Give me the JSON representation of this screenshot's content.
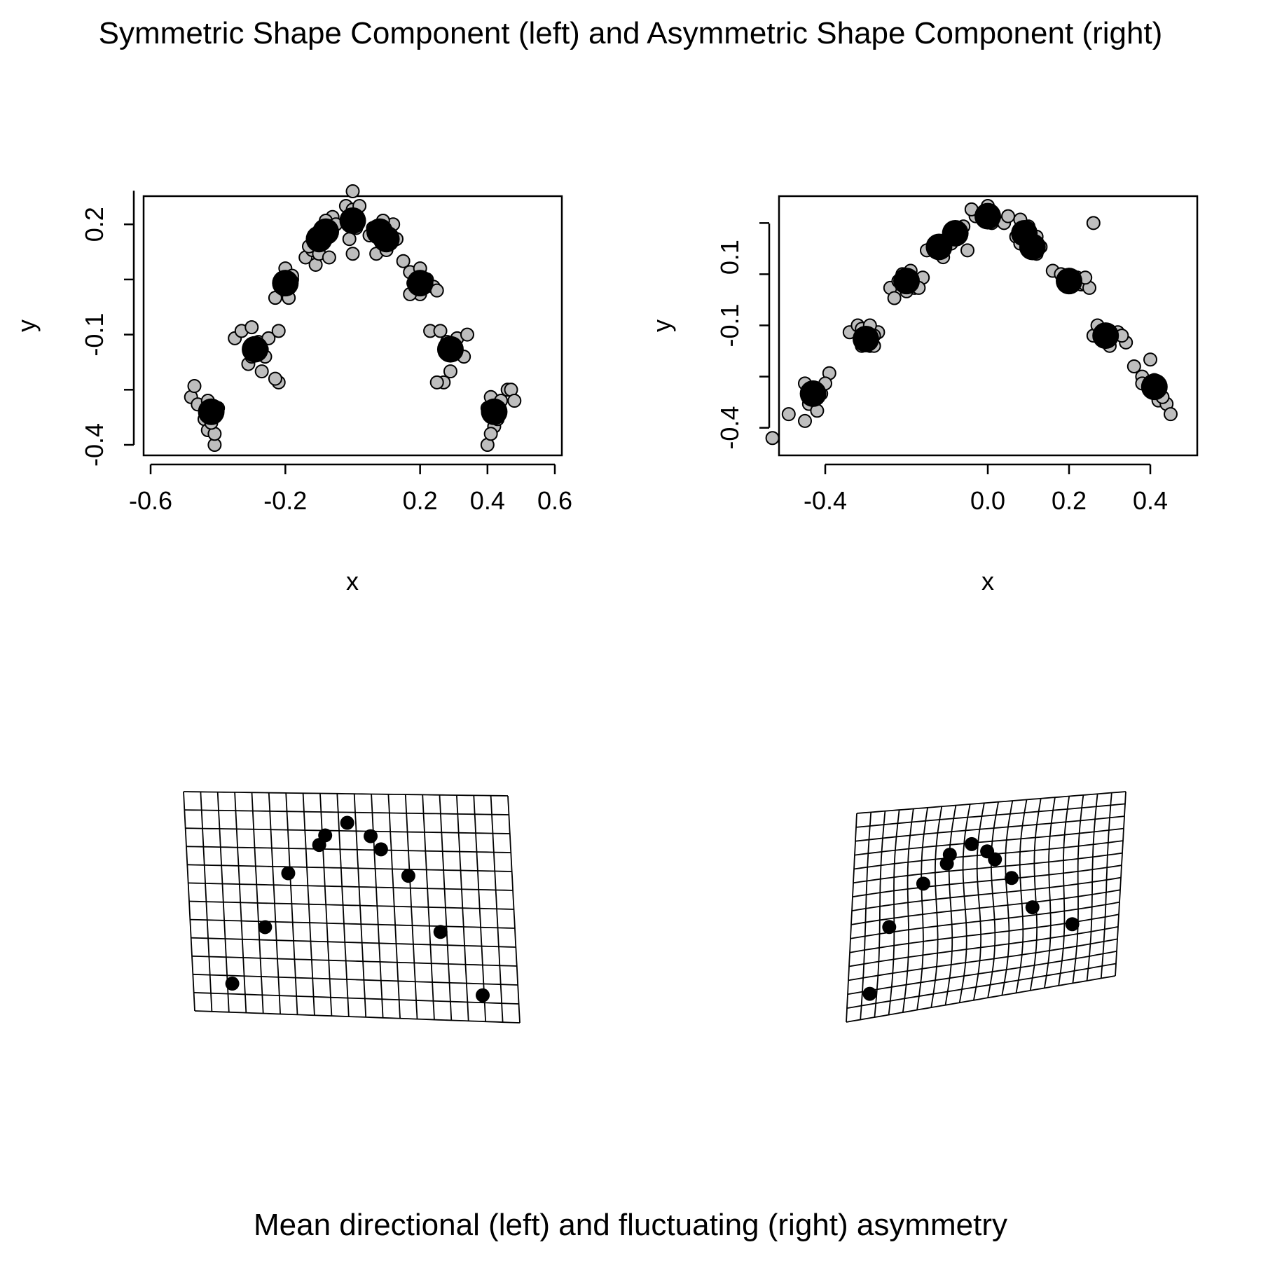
{
  "titles": {
    "top": "Symmetric Shape Component (left) and Asymmetric Shape Component (right)",
    "bottom": "Mean directional (left) and fluctuating (right) asymmetry"
  },
  "colors": {
    "point_fill": "#bebebe",
    "point_stroke": "#000000",
    "mean_fill": "#000000",
    "grid": "#000000",
    "background": "#ffffff"
  },
  "chart_data": [
    {
      "type": "scatter",
      "title": "",
      "xlabel": "x",
      "ylabel": "y",
      "xlim": [
        -0.6,
        0.6
      ],
      "ylim": [
        -0.4,
        0.25
      ],
      "xticks": [
        -0.6,
        -0.2,
        0.2,
        0.4,
        0.6
      ],
      "xtick_labels": [
        "-0.6",
        "-0.2",
        "0.2",
        "0.4",
        "0.6"
      ],
      "yticks": [
        -0.4,
        -0.1,
        0.2
      ],
      "ytick_labels": [
        "-0.4",
        "-0.1",
        "0.2"
      ],
      "series": [
        {
          "role": "landmark-means",
          "x": [
            -0.42,
            -0.29,
            -0.2,
            -0.1,
            -0.08,
            0.0,
            0.08,
            0.1,
            0.2,
            0.29,
            0.42
          ],
          "y": [
            -0.31,
            -0.14,
            0.04,
            0.16,
            0.18,
            0.21,
            0.18,
            0.16,
            0.04,
            -0.14,
            -0.31
          ]
        },
        {
          "role": "specimens",
          "x": [
            -0.48,
            -0.46,
            -0.44,
            -0.43,
            -0.41,
            -0.4,
            -0.43,
            -0.47,
            -0.41,
            -0.42,
            -0.35,
            -0.33,
            -0.3,
            -0.28,
            -0.31,
            -0.26,
            -0.27,
            -0.22,
            -0.23,
            -0.3,
            -0.27,
            -0.25,
            -0.22,
            -0.2,
            -0.18,
            -0.2,
            -0.23,
            -0.19,
            -0.18,
            -0.14,
            -0.12,
            -0.1,
            -0.09,
            -0.08,
            -0.06,
            -0.07,
            -0.11,
            -0.13,
            -0.1,
            -0.08,
            -0.07,
            -0.05,
            -0.02,
            0.0,
            0.0,
            0.0,
            0.0,
            0.01,
            0.02,
            -0.01,
            0.05,
            0.06,
            0.07,
            0.09,
            0.1,
            0.12,
            0.13,
            0.08,
            0.11,
            0.09,
            0.15,
            0.17,
            0.2,
            0.22,
            0.24,
            0.2,
            0.17,
            0.18,
            0.22,
            0.25,
            0.23,
            0.26,
            0.28,
            0.3,
            0.31,
            0.27,
            0.25,
            0.29,
            0.33,
            0.34,
            0.4,
            0.41,
            0.42,
            0.44,
            0.46,
            0.47,
            0.48,
            0.43,
            0.4,
            0.41
          ],
          "y": [
            -0.27,
            -0.29,
            -0.33,
            -0.36,
            -0.4,
            -0.3,
            -0.28,
            -0.24,
            -0.37,
            -0.34,
            -0.11,
            -0.09,
            -0.08,
            -0.12,
            -0.18,
            -0.16,
            -0.2,
            -0.23,
            -0.22,
            -0.16,
            -0.14,
            -0.11,
            -0.09,
            0.02,
            0.05,
            0.08,
            0.0,
            0.0,
            0.06,
            0.11,
            0.13,
            0.15,
            0.19,
            0.2,
            0.22,
            0.17,
            0.09,
            0.14,
            0.12,
            0.21,
            0.11,
            0.2,
            0.25,
            0.24,
            0.22,
            0.29,
            0.12,
            0.19,
            0.25,
            0.16,
            0.17,
            0.19,
            0.12,
            0.2,
            0.13,
            0.2,
            0.16,
            0.17,
            0.15,
            0.21,
            0.1,
            0.07,
            0.08,
            0.05,
            0.03,
            0.01,
            0.01,
            0.04,
            0.05,
            0.02,
            -0.09,
            -0.09,
            -0.12,
            -0.14,
            -0.11,
            -0.23,
            -0.23,
            -0.2,
            -0.16,
            -0.1,
            -0.3,
            -0.27,
            -0.35,
            -0.28,
            -0.25,
            -0.25,
            -0.28,
            -0.33,
            -0.4,
            -0.37
          ]
        }
      ]
    },
    {
      "type": "scatter",
      "title": "",
      "xlabel": "x",
      "ylabel": "y",
      "xlim": [
        -0.5,
        0.5
      ],
      "ylim": [
        -0.45,
        0.25
      ],
      "xticks": [
        -0.4,
        0.0,
        0.2,
        0.4
      ],
      "xtick_labels": [
        "-0.4",
        "0.0",
        "0.2",
        "0.4"
      ],
      "yticks": [
        -0.4,
        -0.1,
        0.1
      ],
      "ytick_labels": [
        "-0.4",
        "-0.1",
        "0.1"
      ],
      "series": [
        {
          "role": "landmark-means",
          "x": [
            -0.43,
            -0.3,
            -0.2,
            -0.12,
            -0.08,
            0.0,
            0.09,
            0.11,
            0.2,
            0.29,
            0.41
          ],
          "y": [
            -0.3,
            -0.14,
            0.03,
            0.13,
            0.17,
            0.22,
            0.17,
            0.13,
            0.03,
            -0.13,
            -0.28
          ]
        },
        {
          "role": "specimens",
          "x": [
            -0.53,
            -0.49,
            -0.45,
            -0.44,
            -0.42,
            -0.41,
            -0.39,
            -0.45,
            -0.44,
            -0.4,
            -0.34,
            -0.32,
            -0.31,
            -0.29,
            -0.28,
            -0.27,
            -0.31,
            -0.29,
            -0.28,
            -0.24,
            -0.22,
            -0.21,
            -0.19,
            -0.18,
            -0.16,
            -0.23,
            -0.2,
            -0.17,
            -0.15,
            -0.12,
            -0.11,
            -0.09,
            -0.07,
            -0.05,
            -0.1,
            -0.09,
            -0.06,
            -0.03,
            -0.04,
            0.0,
            0.04,
            0.05,
            0.01,
            -0.01,
            0.07,
            0.08,
            0.1,
            0.11,
            0.12,
            0.13,
            0.08,
            0.1,
            0.12,
            0.16,
            0.18,
            0.21,
            0.23,
            0.24,
            0.25,
            0.19,
            0.22,
            0.24,
            0.26,
            0.28,
            0.3,
            0.32,
            0.34,
            0.27,
            0.33,
            0.3,
            0.36,
            0.38,
            0.4,
            0.41,
            0.42,
            0.44,
            0.45,
            0.43,
            0.38,
            0.26
          ],
          "y": [
            -0.43,
            -0.36,
            -0.38,
            -0.33,
            -0.35,
            -0.3,
            -0.24,
            -0.27,
            -0.3,
            -0.27,
            -0.12,
            -0.1,
            -0.11,
            -0.16,
            -0.16,
            -0.12,
            -0.16,
            -0.1,
            -0.13,
            0.01,
            0.03,
            0.05,
            0.06,
            0.01,
            0.04,
            -0.02,
            0.0,
            0.01,
            0.12,
            0.12,
            0.1,
            0.14,
            0.17,
            0.12,
            0.15,
            0.18,
            0.19,
            0.22,
            0.24,
            0.25,
            0.2,
            0.22,
            0.2,
            0.22,
            0.16,
            0.21,
            0.19,
            0.15,
            0.11,
            0.13,
            0.14,
            0.12,
            0.16,
            0.06,
            0.05,
            0.03,
            0.02,
            0.02,
            0.01,
            0.02,
            0.04,
            0.04,
            -0.13,
            -0.14,
            -0.12,
            -0.12,
            -0.15,
            -0.1,
            -0.13,
            -0.16,
            -0.22,
            -0.25,
            -0.2,
            -0.26,
            -0.32,
            -0.33,
            -0.36,
            -0.31,
            -0.27,
            0.2
          ]
        }
      ]
    },
    {
      "type": "scatter",
      "role": "deformation-grid",
      "title": "",
      "xlabel": "",
      "ylabel": "",
      "note_grid": "thin-plate spline grid, 19 columns x 12 rows",
      "points": {
        "x": [
          -0.38,
          -0.27,
          -0.19,
          -0.09,
          -0.07,
          0.0,
          0.07,
          0.1,
          0.18,
          0.27,
          0.39
        ],
        "y": [
          -0.31,
          -0.13,
          0.04,
          0.13,
          0.16,
          0.2,
          0.16,
          0.12,
          0.04,
          -0.13,
          -0.32
        ]
      }
    },
    {
      "type": "scatter",
      "role": "deformation-grid",
      "title": "",
      "xlabel": "",
      "ylabel": "",
      "note_grid": "thin-plate spline grid, 19 columns x 15 rows",
      "points": {
        "x": [
          -0.42,
          -0.36,
          -0.23,
          -0.14,
          -0.13,
          -0.05,
          0.01,
          0.04,
          0.1,
          0.17,
          0.32
        ],
        "y": [
          -0.28,
          -0.07,
          0.06,
          0.12,
          0.15,
          0.18,
          0.15,
          0.12,
          0.05,
          -0.06,
          -0.14
        ]
      }
    }
  ]
}
